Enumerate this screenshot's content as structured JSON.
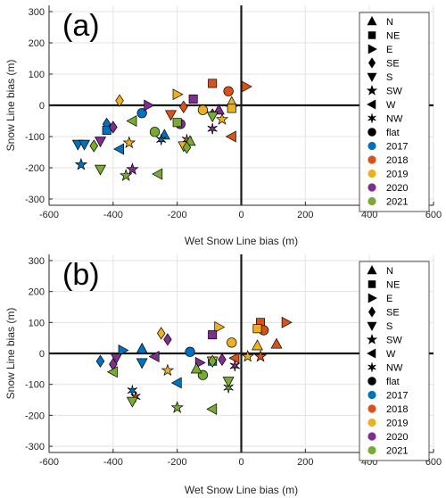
{
  "colors": {
    "2017": "#0072bd",
    "2018": "#d95319",
    "2019": "#edb120",
    "2020": "#7e2f8e",
    "2021": "#77ac30"
  },
  "legend": {
    "aspects": [
      {
        "label": "N",
        "shape": "triangle-up"
      },
      {
        "label": "NE",
        "shape": "square"
      },
      {
        "label": "E",
        "shape": "triangle-right"
      },
      {
        "label": "SE",
        "shape": "diamond"
      },
      {
        "label": "S",
        "shape": "triangle-down"
      },
      {
        "label": "SW",
        "shape": "star"
      },
      {
        "label": "W",
        "shape": "triangle-left"
      },
      {
        "label": "NW",
        "shape": "asterisk"
      },
      {
        "label": "flat",
        "shape": "circle"
      }
    ],
    "years": [
      "2017",
      "2018",
      "2019",
      "2020",
      "2021"
    ]
  },
  "chart_data": [
    {
      "type": "scatter",
      "panel_label": "(a)",
      "xlabel": "Wet Snow Line bias (m)",
      "ylabel": "Snow Line bias (m)",
      "xlim": [
        -600,
        600
      ],
      "ylim": [
        -320,
        320
      ],
      "xticks": [
        -600,
        -400,
        -200,
        0,
        200,
        400,
        600
      ],
      "yticks": [
        -300,
        -200,
        -100,
        0,
        100,
        200,
        300
      ],
      "grid": true,
      "legend_position": "right",
      "points": [
        {
          "x": -510,
          "y": -125,
          "aspect": "S",
          "year": "2017"
        },
        {
          "x": -490,
          "y": -125,
          "aspect": "S",
          "year": "2017"
        },
        {
          "x": -500,
          "y": -190,
          "aspect": "SW",
          "year": "2017"
        },
        {
          "x": -420,
          "y": -60,
          "aspect": "SE",
          "year": "2017"
        },
        {
          "x": -420,
          "y": -80,
          "aspect": "NE",
          "year": "2017"
        },
        {
          "x": -380,
          "y": -140,
          "aspect": "W",
          "year": "2017"
        },
        {
          "x": -310,
          "y": -25,
          "aspect": "flat",
          "year": "2017"
        },
        {
          "x": -240,
          "y": -95,
          "aspect": "N",
          "year": "2017"
        },
        {
          "x": -250,
          "y": -110,
          "aspect": "NW",
          "year": "2017"
        },
        {
          "x": -90,
          "y": 70,
          "aspect": "NE",
          "year": "2018"
        },
        {
          "x": 15,
          "y": 60,
          "aspect": "E",
          "year": "2018"
        },
        {
          "x": -40,
          "y": 45,
          "aspect": "flat",
          "year": "2018"
        },
        {
          "x": -30,
          "y": -100,
          "aspect": "W",
          "year": "2018"
        },
        {
          "x": -170,
          "y": -110,
          "aspect": "NW",
          "year": "2018"
        },
        {
          "x": -180,
          "y": -5,
          "aspect": "SE",
          "year": "2018"
        },
        {
          "x": -220,
          "y": -30,
          "aspect": "S",
          "year": "2018"
        },
        {
          "x": -380,
          "y": 15,
          "aspect": "SE",
          "year": "2019"
        },
        {
          "x": -200,
          "y": 35,
          "aspect": "E",
          "year": "2019"
        },
        {
          "x": -120,
          "y": -15,
          "aspect": "flat",
          "year": "2019"
        },
        {
          "x": -30,
          "y": 10,
          "aspect": "N",
          "year": "2019"
        },
        {
          "x": -30,
          "y": -10,
          "aspect": "NE",
          "year": "2019"
        },
        {
          "x": -60,
          "y": -45,
          "aspect": "SW",
          "year": "2019"
        },
        {
          "x": -350,
          "y": -120,
          "aspect": "SW",
          "year": "2019"
        },
        {
          "x": -180,
          "y": -130,
          "aspect": "S",
          "year": "2019"
        },
        {
          "x": -290,
          "y": 0,
          "aspect": "E",
          "year": "2020"
        },
        {
          "x": -150,
          "y": 20,
          "aspect": "NE",
          "year": "2020"
        },
        {
          "x": -90,
          "y": -30,
          "aspect": "SE",
          "year": "2020"
        },
        {
          "x": -90,
          "y": -75,
          "aspect": "NW",
          "year": "2020"
        },
        {
          "x": -190,
          "y": -60,
          "aspect": "flat",
          "year": "2020"
        },
        {
          "x": -400,
          "y": -70,
          "aspect": "SE",
          "year": "2020"
        },
        {
          "x": -440,
          "y": -115,
          "aspect": "S",
          "year": "2020"
        },
        {
          "x": -340,
          "y": -205,
          "aspect": "SW",
          "year": "2020"
        },
        {
          "x": -70,
          "y": -15,
          "aspect": "N",
          "year": "2020"
        },
        {
          "x": -340,
          "y": -50,
          "aspect": "W",
          "year": "2021"
        },
        {
          "x": -460,
          "y": -130,
          "aspect": "SE",
          "year": "2021"
        },
        {
          "x": -440,
          "y": -205,
          "aspect": "S",
          "year": "2021"
        },
        {
          "x": -360,
          "y": -225,
          "aspect": "SW",
          "year": "2021"
        },
        {
          "x": -260,
          "y": -220,
          "aspect": "W",
          "year": "2021"
        },
        {
          "x": -270,
          "y": -85,
          "aspect": "flat",
          "year": "2021"
        },
        {
          "x": -200,
          "y": -55,
          "aspect": "NE",
          "year": "2021"
        },
        {
          "x": -160,
          "y": -115,
          "aspect": "N",
          "year": "2021"
        },
        {
          "x": -170,
          "y": -135,
          "aspect": "SE",
          "year": "2021"
        },
        {
          "x": -90,
          "y": -35,
          "aspect": "S",
          "year": "2021"
        }
      ]
    },
    {
      "type": "scatter",
      "panel_label": "(b)",
      "xlabel": "Wet Snow Line bias (m)",
      "ylabel": "Snow Line bias (m)",
      "xlim": [
        -600,
        600
      ],
      "ylim": [
        -320,
        320
      ],
      "xticks": [
        -600,
        -400,
        -200,
        0,
        200,
        400,
        600
      ],
      "yticks": [
        -300,
        -200,
        -100,
        0,
        100,
        200,
        300
      ],
      "grid": true,
      "legend_position": "right",
      "points": [
        {
          "x": -440,
          "y": -25,
          "aspect": "SE",
          "year": "2017"
        },
        {
          "x": -370,
          "y": 10,
          "aspect": "E",
          "year": "2017"
        },
        {
          "x": -310,
          "y": 15,
          "aspect": "N",
          "year": "2017"
        },
        {
          "x": -310,
          "y": -30,
          "aspect": "S",
          "year": "2017"
        },
        {
          "x": -340,
          "y": -120,
          "aspect": "NW",
          "year": "2017"
        },
        {
          "x": -200,
          "y": -95,
          "aspect": "W",
          "year": "2017"
        },
        {
          "x": -160,
          "y": 5,
          "aspect": "flat",
          "year": "2017"
        },
        {
          "x": -90,
          "y": -25,
          "aspect": "NE",
          "year": "2017"
        },
        {
          "x": 60,
          "y": 100,
          "aspect": "NE",
          "year": "2018"
        },
        {
          "x": 140,
          "y": 100,
          "aspect": "E",
          "year": "2018"
        },
        {
          "x": 110,
          "y": 30,
          "aspect": "N",
          "year": "2018"
        },
        {
          "x": 70,
          "y": 75,
          "aspect": "flat",
          "year": "2018"
        },
        {
          "x": 60,
          "y": -10,
          "aspect": "SW",
          "year": "2018"
        },
        {
          "x": -330,
          "y": -140,
          "aspect": "NW",
          "year": "2018"
        },
        {
          "x": -20,
          "y": -15,
          "aspect": "W",
          "year": "2018"
        },
        {
          "x": -250,
          "y": 65,
          "aspect": "SE",
          "year": "2019"
        },
        {
          "x": -70,
          "y": 85,
          "aspect": "E",
          "year": "2019"
        },
        {
          "x": 50,
          "y": 80,
          "aspect": "NE",
          "year": "2019"
        },
        {
          "x": -30,
          "y": 35,
          "aspect": "flat",
          "year": "2019"
        },
        {
          "x": 50,
          "y": 25,
          "aspect": "N",
          "year": "2019"
        },
        {
          "x": 20,
          "y": -10,
          "aspect": "SW",
          "year": "2019"
        },
        {
          "x": -230,
          "y": -55,
          "aspect": "SW",
          "year": "2019"
        },
        {
          "x": -90,
          "y": -25,
          "aspect": "S",
          "year": "2019"
        },
        {
          "x": -230,
          "y": 45,
          "aspect": "SE",
          "year": "2020"
        },
        {
          "x": -90,
          "y": 60,
          "aspect": "NE",
          "year": "2020"
        },
        {
          "x": -60,
          "y": -20,
          "aspect": "SE",
          "year": "2020"
        },
        {
          "x": -20,
          "y": -40,
          "aspect": "NW",
          "year": "2020"
        },
        {
          "x": -390,
          "y": -15,
          "aspect": "S",
          "year": "2020"
        },
        {
          "x": -400,
          "y": -35,
          "aspect": "SE",
          "year": "2020"
        },
        {
          "x": -270,
          "y": -10,
          "aspect": "W",
          "year": "2020"
        },
        {
          "x": -130,
          "y": -30,
          "aspect": "E",
          "year": "2020"
        },
        {
          "x": -400,
          "y": -60,
          "aspect": "W",
          "year": "2021"
        },
        {
          "x": -340,
          "y": -155,
          "aspect": "S",
          "year": "2021"
        },
        {
          "x": -200,
          "y": -175,
          "aspect": "SW",
          "year": "2021"
        },
        {
          "x": -90,
          "y": -180,
          "aspect": "W",
          "year": "2021"
        },
        {
          "x": -120,
          "y": -70,
          "aspect": "flat",
          "year": "2021"
        },
        {
          "x": -90,
          "y": -25,
          "aspect": "SE",
          "year": "2021"
        },
        {
          "x": -40,
          "y": -110,
          "aspect": "NW",
          "year": "2021"
        },
        {
          "x": -40,
          "y": -90,
          "aspect": "S",
          "year": "2021"
        },
        {
          "x": -140,
          "y": -50,
          "aspect": "N",
          "year": "2021"
        }
      ]
    }
  ]
}
